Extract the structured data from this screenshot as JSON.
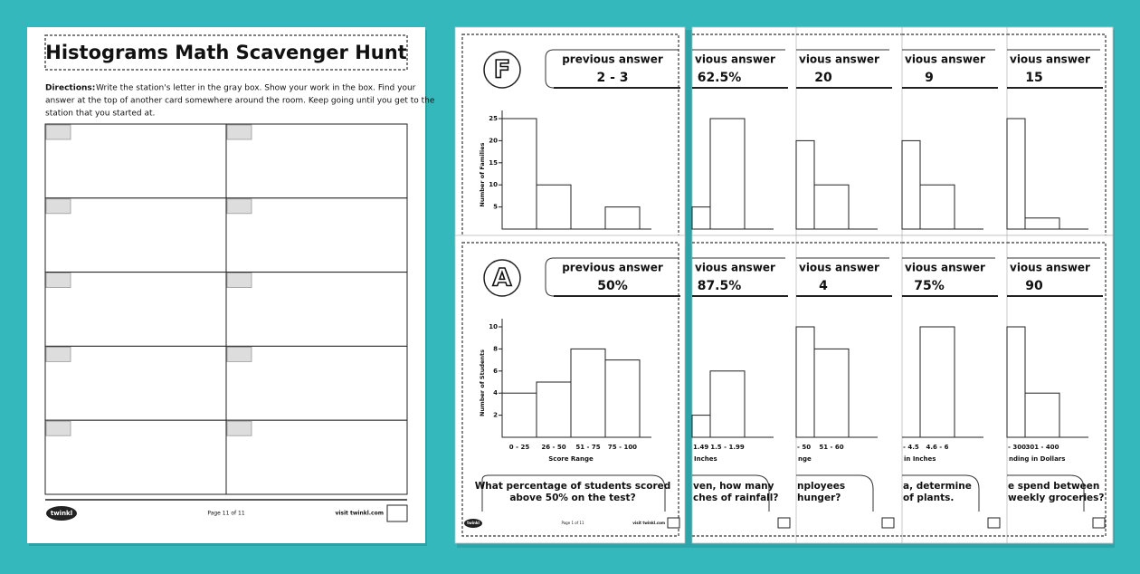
{
  "worksheet": {
    "title": "Histograms Math Scavenger Hunt",
    "directions_label": "Directions:",
    "directions": [
      "Write the station's letter in the gray box. Show your work in the box. Find your",
      "answer at the top of another card somewhere around the room. Keep going until you get to the",
      "station that you started at."
    ],
    "footer": {
      "logo": "twinkl",
      "page": "Page 11 of 11",
      "site": "visit twinkl.com"
    }
  },
  "cards": {
    "front": [
      {
        "letter": "F",
        "prev_label": "previous answer",
        "prev_answer": "2 - 3",
        "y_label": "Number of Families",
        "ylim": [
          0,
          25
        ],
        "yticks": [
          5,
          10,
          15,
          20,
          25
        ],
        "bars": [
          25,
          10,
          0,
          5
        ]
      },
      {
        "letter": "A",
        "prev_label": "previous answer",
        "prev_answer": "50%",
        "y_label": "Number of Students",
        "ylim": [
          0,
          10
        ],
        "yticks": [
          2,
          4,
          6,
          8,
          10
        ],
        "bars": [
          4,
          5,
          8,
          7
        ],
        "x_labels": [
          "0 - 25",
          "26 - 50",
          "51 - 75",
          "75 - 100"
        ],
        "x_title": "Score Range",
        "question": [
          "What percentage of students scored",
          "above 50% on the test?"
        ],
        "footer": {
          "logo": "twinkl",
          "page": "Page 1 of 11",
          "site": "visit twinkl.com"
        }
      }
    ],
    "back_top": [
      {
        "prev_label": "vious answer",
        "prev_answer": "62.5%",
        "bars": [
          5,
          25
        ]
      },
      {
        "prev_label": "vious answer",
        "prev_answer": "20",
        "bars": [
          20,
          10
        ]
      },
      {
        "prev_label": "vious answer",
        "prev_answer": "9",
        "bars": [
          20,
          10
        ]
      },
      {
        "prev_label": "vious answer",
        "prev_answer": "15",
        "bars": [
          25,
          2.5
        ]
      }
    ],
    "back_bottom": [
      {
        "prev_label": "vious answer",
        "prev_answer": "87.5%",
        "bars": [
          2,
          6
        ],
        "x_labels": [
          "1.49",
          "1.5 - 1.99"
        ],
        "x_title": "Inches",
        "question": [
          "ven, how many",
          "ches of rainfall?"
        ]
      },
      {
        "prev_label": "vious answer",
        "prev_answer": "4",
        "bars": [
          10,
          8
        ],
        "x_labels": [
          "- 50",
          "51 - 60"
        ],
        "x_title": "nge",
        "question": [
          "nployees",
          "hunger?"
        ]
      },
      {
        "prev_label": "vious answer",
        "prev_answer": "75%",
        "bars": [
          null,
          10
        ],
        "x_labels": [
          "- 4.5",
          "4.6 - 6"
        ],
        "x_title": "in Inches",
        "question": [
          "a, determine",
          "of plants."
        ]
      },
      {
        "prev_label": "vious answer",
        "prev_answer": "90",
        "bars": [
          10,
          4
        ],
        "x_labels": [
          "- 300",
          "301 - 400"
        ],
        "x_title": "nding in Dollars",
        "question": [
          "e spend between",
          "weekly groceries?"
        ]
      }
    ]
  }
}
